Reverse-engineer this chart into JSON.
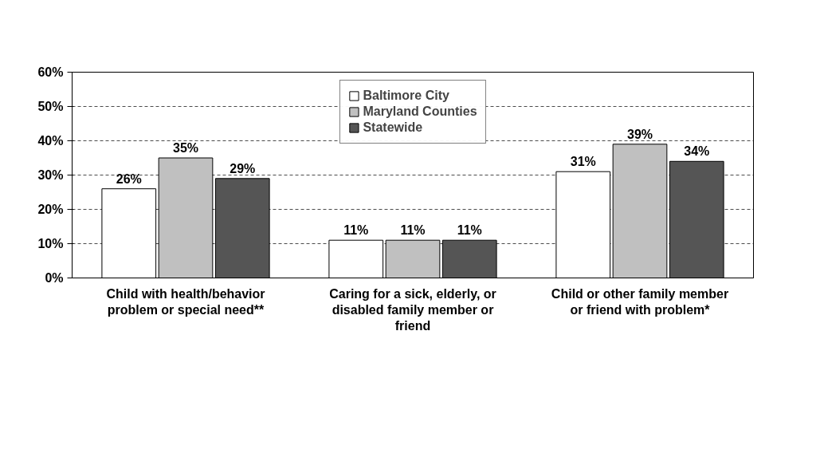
{
  "chart_data": {
    "type": "bar",
    "categories": [
      "Child with health/behavior problem or special need**",
      "Caring for a sick, elderly, or disabled family member or friend",
      "Child or other family member or friend with problem*"
    ],
    "series": [
      {
        "name": "Baltimore City",
        "color": "#ffffff",
        "values": [
          26,
          11,
          31
        ],
        "value_labels": [
          "26%",
          "11%",
          "31%"
        ]
      },
      {
        "name": "Maryland Counties",
        "color": "#c0c0c0",
        "values": [
          35,
          11,
          39
        ],
        "value_labels": [
          "35%",
          "11%",
          "39%"
        ]
      },
      {
        "name": "Statewide",
        "color": "#555555",
        "values": [
          29,
          11,
          34
        ],
        "value_labels": [
          "29%",
          "11%",
          "34%"
        ]
      }
    ],
    "ylim": [
      0,
      60
    ],
    "yticks": [
      {
        "value": 0,
        "label": "0%"
      },
      {
        "value": 10,
        "label": "10%"
      },
      {
        "value": 20,
        "label": "20%"
      },
      {
        "value": 30,
        "label": "30%"
      },
      {
        "value": 40,
        "label": "40%"
      },
      {
        "value": 50,
        "label": "50%"
      },
      {
        "value": 60,
        "label": "60%"
      }
    ],
    "grid": "y",
    "legend": "top"
  }
}
